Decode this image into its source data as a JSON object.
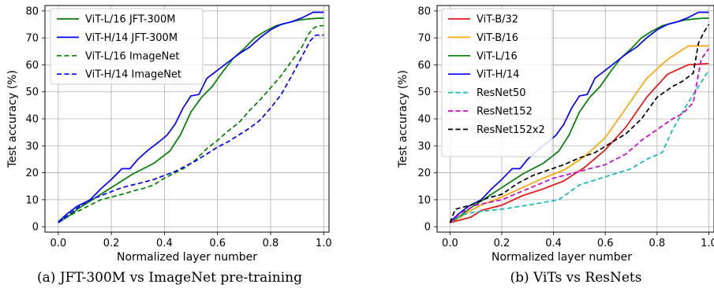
{
  "chart_data": [
    {
      "type": "line",
      "caption": "(a) JFT-300M vs ImageNet pre-training",
      "xlabel": "Normalized layer number",
      "ylabel": "Test accuracy (%)",
      "xlim": [
        -0.05,
        1.02
      ],
      "ylim": [
        -2,
        82
      ],
      "xticks": [
        "0.0",
        "0.2",
        "0.4",
        "0.6",
        "0.8",
        "1.0"
      ],
      "yticks": [
        "0",
        "10",
        "20",
        "30",
        "40",
        "50",
        "60",
        "70",
        "80"
      ],
      "grid": true,
      "legend_position": "top-left",
      "series": [
        {
          "name": "ViT-L/16 JFT-300M",
          "color": "#008000",
          "dash": "solid",
          "points": [
            [
              0.0,
              1.5
            ],
            [
              0.04,
              4
            ],
            [
              0.08,
              7
            ],
            [
              0.12,
              9.5
            ],
            [
              0.16,
              12
            ],
            [
              0.2,
              14.5
            ],
            [
              0.24,
              17
            ],
            [
              0.28,
              19.5
            ],
            [
              0.32,
              21.5
            ],
            [
              0.36,
              23.5
            ],
            [
              0.4,
              26.5
            ],
            [
              0.42,
              28
            ],
            [
              0.46,
              34
            ],
            [
              0.5,
              42.5
            ],
            [
              0.54,
              48
            ],
            [
              0.58,
              52
            ],
            [
              0.62,
              57.5
            ],
            [
              0.66,
              62.5
            ],
            [
              0.7,
              66
            ],
            [
              0.74,
              70
            ],
            [
              0.78,
              72.5
            ],
            [
              0.82,
              74.5
            ],
            [
              0.86,
              75.5
            ],
            [
              0.9,
              76.5
            ],
            [
              0.94,
              77
            ],
            [
              0.98,
              77.3
            ],
            [
              1.0,
              77.3
            ]
          ]
        },
        {
          "name": "ViT-H/14 JFT-300M",
          "color": "#0000ff",
          "dash": "solid",
          "points": [
            [
              0.0,
              1.8
            ],
            [
              0.03,
              4.5
            ],
            [
              0.07,
              7.5
            ],
            [
              0.12,
              10
            ],
            [
              0.16,
              14
            ],
            [
              0.2,
              17.5
            ],
            [
              0.24,
              21.5
            ],
            [
              0.27,
              21.5
            ],
            [
              0.3,
              25
            ],
            [
              0.34,
              28.5
            ],
            [
              0.38,
              31.5
            ],
            [
              0.41,
              34
            ],
            [
              0.44,
              38
            ],
            [
              0.47,
              44
            ],
            [
              0.5,
              48.5
            ],
            [
              0.53,
              49
            ],
            [
              0.56,
              55
            ],
            [
              0.6,
              58
            ],
            [
              0.64,
              61
            ],
            [
              0.68,
              64
            ],
            [
              0.72,
              66.5
            ],
            [
              0.76,
              70
            ],
            [
              0.8,
              73
            ],
            [
              0.84,
              75
            ],
            [
              0.88,
              76
            ],
            [
              0.92,
              77.5
            ],
            [
              0.96,
              79.5
            ],
            [
              1.0,
              79.5
            ]
          ]
        },
        {
          "name": "ViT-L/16 ImageNet",
          "color": "#008000",
          "dash": "dashed",
          "points": [
            [
              0.0,
              1.5
            ],
            [
              0.04,
              4
            ],
            [
              0.08,
              6
            ],
            [
              0.12,
              8
            ],
            [
              0.16,
              10
            ],
            [
              0.2,
              11
            ],
            [
              0.24,
              12
            ],
            [
              0.28,
              13.2
            ],
            [
              0.32,
              14.2
            ],
            [
              0.36,
              15.5
            ],
            [
              0.4,
              18
            ],
            [
              0.44,
              20
            ],
            [
              0.48,
              22
            ],
            [
              0.52,
              25
            ],
            [
              0.56,
              29
            ],
            [
              0.6,
              32
            ],
            [
              0.64,
              35.5
            ],
            [
              0.68,
              38.5
            ],
            [
              0.72,
              43
            ],
            [
              0.76,
              47
            ],
            [
              0.8,
              51.5
            ],
            [
              0.84,
              56
            ],
            [
              0.88,
              61.5
            ],
            [
              0.92,
              67
            ],
            [
              0.94,
              71
            ],
            [
              0.96,
              73.5
            ],
            [
              0.98,
              74.5
            ],
            [
              1.0,
              74.5
            ]
          ]
        },
        {
          "name": "ViT-H/14 ImageNet",
          "color": "#0000ff",
          "dash": "dashed",
          "points": [
            [
              0.0,
              1.5
            ],
            [
              0.04,
              4.5
            ],
            [
              0.08,
              7.5
            ],
            [
              0.12,
              10
            ],
            [
              0.16,
              11.5
            ],
            [
              0.2,
              13
            ],
            [
              0.24,
              14.5
            ],
            [
              0.28,
              15.5
            ],
            [
              0.32,
              16.5
            ],
            [
              0.36,
              17.5
            ],
            [
              0.4,
              19
            ],
            [
              0.44,
              20.5
            ],
            [
              0.48,
              22.5
            ],
            [
              0.52,
              24.5
            ],
            [
              0.56,
              27
            ],
            [
              0.6,
              29.5
            ],
            [
              0.64,
              31.5
            ],
            [
              0.68,
              34
            ],
            [
              0.72,
              36.5
            ],
            [
              0.76,
              39.5
            ],
            [
              0.8,
              44
            ],
            [
              0.84,
              49
            ],
            [
              0.88,
              56
            ],
            [
              0.92,
              63.5
            ],
            [
              0.95,
              69
            ],
            [
              0.97,
              71
            ],
            [
              1.0,
              71
            ]
          ]
        }
      ]
    },
    {
      "type": "line",
      "caption": "(b) ViTs vs ResNets",
      "xlabel": "Normalized layer number",
      "ylabel": "Test accuracy (%)",
      "xlim": [
        -0.05,
        1.02
      ],
      "ylim": [
        -2,
        82
      ],
      "xticks": [
        "0.0",
        "0.2",
        "0.4",
        "0.6",
        "0.8",
        "1.0"
      ],
      "yticks": [
        "0",
        "10",
        "20",
        "30",
        "40",
        "50",
        "60",
        "70",
        "80"
      ],
      "grid": true,
      "legend_position": "top-left",
      "series": [
        {
          "name": "ViT-B/32",
          "color": "#ee1111",
          "dash": "solid",
          "points": [
            [
              0.0,
              1.5
            ],
            [
              0.04,
              2.5
            ],
            [
              0.08,
              3.5
            ],
            [
              0.12,
              6
            ],
            [
              0.2,
              8
            ],
            [
              0.28,
              11.5
            ],
            [
              0.36,
              14
            ],
            [
              0.44,
              17
            ],
            [
              0.52,
              22
            ],
            [
              0.6,
              28.5
            ],
            [
              0.68,
              37
            ],
            [
              0.76,
              48
            ],
            [
              0.84,
              56.5
            ],
            [
              0.92,
              60
            ],
            [
              1.0,
              60.5
            ]
          ]
        },
        {
          "name": "ViT-B/16",
          "color": "#ffa500",
          "dash": "solid",
          "points": [
            [
              0.0,
              1.5
            ],
            [
              0.04,
              3.5
            ],
            [
              0.08,
              6
            ],
            [
              0.12,
              8
            ],
            [
              0.2,
              11
            ],
            [
              0.28,
              14.5
            ],
            [
              0.36,
              18
            ],
            [
              0.44,
              21
            ],
            [
              0.52,
              26
            ],
            [
              0.6,
              33
            ],
            [
              0.68,
              44
            ],
            [
              0.76,
              55
            ],
            [
              0.84,
              62
            ],
            [
              0.92,
              67
            ],
            [
              1.0,
              67
            ]
          ]
        },
        {
          "name": "ViT-L/16",
          "color": "#008000",
          "dash": "solid",
          "points": [
            [
              0.0,
              1.5
            ],
            [
              0.04,
              4
            ],
            [
              0.08,
              7
            ],
            [
              0.12,
              9.5
            ],
            [
              0.16,
              12
            ],
            [
              0.2,
              14.5
            ],
            [
              0.24,
              17
            ],
            [
              0.28,
              19.5
            ],
            [
              0.32,
              21.5
            ],
            [
              0.36,
              23.5
            ],
            [
              0.4,
              26.5
            ],
            [
              0.42,
              28
            ],
            [
              0.46,
              34
            ],
            [
              0.5,
              42.5
            ],
            [
              0.54,
              48
            ],
            [
              0.58,
              52
            ],
            [
              0.62,
              57.5
            ],
            [
              0.66,
              62.5
            ],
            [
              0.7,
              66
            ],
            [
              0.74,
              70
            ],
            [
              0.78,
              72.5
            ],
            [
              0.82,
              74.5
            ],
            [
              0.86,
              75.5
            ],
            [
              0.9,
              76.5
            ],
            [
              0.94,
              77
            ],
            [
              0.98,
              77.3
            ],
            [
              1.0,
              77.3
            ]
          ]
        },
        {
          "name": "ViT-H/14",
          "color": "#0000ff",
          "dash": "solid",
          "points": [
            [
              0.0,
              1.8
            ],
            [
              0.03,
              4.5
            ],
            [
              0.07,
              7.5
            ],
            [
              0.12,
              10
            ],
            [
              0.16,
              14
            ],
            [
              0.2,
              17.5
            ],
            [
              0.24,
              21.5
            ],
            [
              0.27,
              21.5
            ],
            [
              0.3,
              25
            ],
            [
              0.34,
              28.5
            ],
            [
              0.38,
              31.5
            ],
            [
              0.41,
              34
            ],
            [
              0.44,
              38
            ],
            [
              0.47,
              44
            ],
            [
              0.5,
              48.5
            ],
            [
              0.53,
              49
            ],
            [
              0.56,
              55
            ],
            [
              0.6,
              58
            ],
            [
              0.64,
              61
            ],
            [
              0.68,
              64
            ],
            [
              0.72,
              66.5
            ],
            [
              0.76,
              70
            ],
            [
              0.8,
              73
            ],
            [
              0.84,
              75
            ],
            [
              0.88,
              76
            ],
            [
              0.92,
              77.5
            ],
            [
              0.96,
              79.5
            ],
            [
              1.0,
              79.5
            ]
          ]
        },
        {
          "name": "ResNet50",
          "color": "#11bbbb",
          "dash": "dashed",
          "points": [
            [
              0.0,
              1.5
            ],
            [
              0.05,
              4.5
            ],
            [
              0.1,
              5.5
            ],
            [
              0.2,
              6.5
            ],
            [
              0.3,
              8
            ],
            [
              0.42,
              10
            ],
            [
              0.5,
              15.5
            ],
            [
              0.6,
              18.5
            ],
            [
              0.7,
              21.5
            ],
            [
              0.76,
              25
            ],
            [
              0.82,
              27.5
            ],
            [
              0.86,
              36
            ],
            [
              0.92,
              46
            ],
            [
              0.96,
              52
            ],
            [
              1.0,
              58
            ]
          ]
        },
        {
          "name": "ResNet152",
          "color": "#cc00cc",
          "dash": "dashed",
          "points": [
            [
              0.0,
              1.5
            ],
            [
              0.04,
              5
            ],
            [
              0.1,
              8
            ],
            [
              0.2,
              10
            ],
            [
              0.3,
              14
            ],
            [
              0.4,
              18
            ],
            [
              0.5,
              20.5
            ],
            [
              0.6,
              23
            ],
            [
              0.68,
              27
            ],
            [
              0.74,
              32
            ],
            [
              0.8,
              36
            ],
            [
              0.86,
              40
            ],
            [
              0.9,
              42
            ],
            [
              0.94,
              46
            ],
            [
              0.97,
              62
            ],
            [
              1.0,
              66
            ]
          ]
        },
        {
          "name": "ResNet152x2",
          "color": "#000000",
          "dash": "dashed",
          "points": [
            [
              0.0,
              1.5
            ],
            [
              0.02,
              6.5
            ],
            [
              0.08,
              8
            ],
            [
              0.14,
              10.5
            ],
            [
              0.2,
              12
            ],
            [
              0.26,
              16
            ],
            [
              0.32,
              19
            ],
            [
              0.38,
              21
            ],
            [
              0.44,
              23
            ],
            [
              0.5,
              25.5
            ],
            [
              0.56,
              27.5
            ],
            [
              0.62,
              31
            ],
            [
              0.68,
              34.5
            ],
            [
              0.74,
              40
            ],
            [
              0.8,
              48
            ],
            [
              0.86,
              52
            ],
            [
              0.9,
              54
            ],
            [
              0.94,
              57
            ],
            [
              0.96,
              68
            ],
            [
              0.98,
              72
            ],
            [
              1.0,
              75
            ]
          ]
        }
      ]
    }
  ]
}
